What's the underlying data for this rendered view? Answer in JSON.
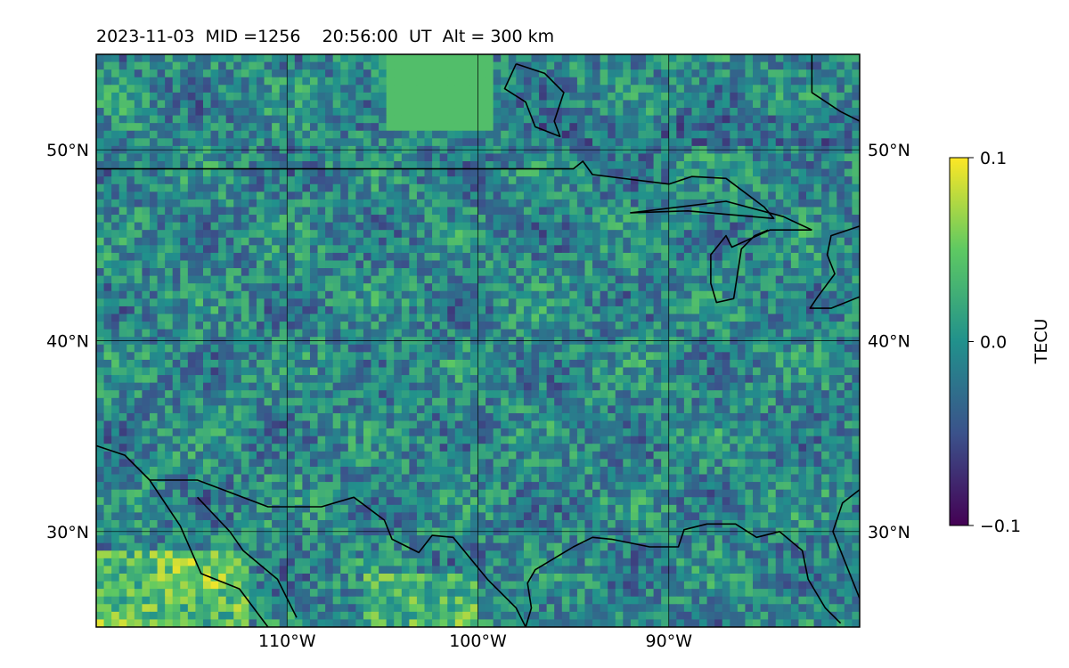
{
  "title": "2023-11-03  MID =1256    20:56:00  UT  Alt = 300 km",
  "map": {
    "lon_range": [
      -120,
      -80
    ],
    "lat_range": [
      25,
      55
    ],
    "lon_ticks": [
      {
        "value": -110,
        "label": "110°W"
      },
      {
        "value": -100,
        "label": "100°W"
      },
      {
        "value": -90,
        "label": "90°W"
      }
    ],
    "lat_ticks": [
      {
        "value": 50,
        "label": "50°N"
      },
      {
        "value": 40,
        "label": "40°N"
      },
      {
        "value": 30,
        "label": "30°N"
      }
    ],
    "grid": true,
    "field": "TEC perturbation"
  },
  "colorbar": {
    "label": "TECU",
    "vmin": -0.1,
    "vmax": 0.1,
    "ticks": [
      {
        "value": 0.1,
        "label": "0.1"
      },
      {
        "value": 0.0,
        "label": "0.0"
      },
      {
        "value": -0.1,
        "label": "−0.1"
      }
    ],
    "colormap": "viridis",
    "colors": [
      "#440154",
      "#3b528b",
      "#21918c",
      "#5ec962",
      "#fde725"
    ]
  },
  "coastlines": [
    [
      [
        -120,
        49
      ],
      [
        -95,
        49
      ],
      [
        -94.5,
        49.4
      ],
      [
        -94,
        48.7
      ],
      [
        -90,
        48.2
      ],
      [
        -88.8,
        48.6
      ],
      [
        -87,
        48.5
      ],
      [
        -85,
        47
      ],
      [
        -84.5,
        46.4
      ],
      [
        -89,
        46.8
      ],
      [
        -92,
        46.7
      ],
      [
        -87,
        47.3
      ],
      [
        -84,
        46.5
      ],
      [
        -82.5,
        45.8
      ]
    ],
    [
      [
        -82.5,
        45.8
      ],
      [
        -84.7,
        45.8
      ],
      [
        -86.7,
        44.9
      ],
      [
        -87,
        45.5
      ],
      [
        -87.8,
        44.5
      ],
      [
        -87.8,
        43
      ],
      [
        -87.5,
        42
      ],
      [
        -86.6,
        42.2
      ],
      [
        -86.4,
        43.5
      ],
      [
        -86.2,
        44.8
      ],
      [
        -85.5,
        45.5
      ],
      [
        -84.8,
        45.8
      ]
    ],
    [
      [
        -80,
        46
      ],
      [
        -81.5,
        45.5
      ],
      [
        -81.7,
        44.5
      ],
      [
        -81.3,
        43.5
      ],
      [
        -82.2,
        42.3
      ],
      [
        -82.6,
        41.7
      ],
      [
        -81.5,
        41.7
      ],
      [
        -80,
        42.3
      ]
    ],
    [
      [
        -120,
        34.5
      ],
      [
        -118.5,
        34
      ],
      [
        -117.2,
        32.7
      ],
      [
        -114.7,
        32.7
      ],
      [
        -111,
        31.3
      ],
      [
        -108.2,
        31.3
      ],
      [
        -106.5,
        31.8
      ],
      [
        -104.9,
        30.6
      ],
      [
        -104.5,
        29.6
      ],
      [
        -103.1,
        28.9
      ],
      [
        -102.4,
        29.8
      ],
      [
        -101.3,
        29.7
      ],
      [
        -99.5,
        27.5
      ],
      [
        -98,
        26
      ],
      [
        -97.5,
        25
      ]
    ],
    [
      [
        -97.5,
        25
      ],
      [
        -97.2,
        26
      ],
      [
        -97.4,
        27.3
      ],
      [
        -97,
        28
      ],
      [
        -95,
        29.2
      ],
      [
        -94,
        29.7
      ],
      [
        -93,
        29.6
      ],
      [
        -91,
        29.2
      ],
      [
        -89.5,
        29.2
      ],
      [
        -89.2,
        30.1
      ],
      [
        -88,
        30.4
      ],
      [
        -86.5,
        30.4
      ],
      [
        -85.4,
        29.7
      ],
      [
        -84.2,
        30
      ],
      [
        -83,
        29
      ],
      [
        -82.7,
        27.5
      ],
      [
        -81.8,
        26
      ],
      [
        -81,
        25.2
      ]
    ],
    [
      [
        -80,
        32.2
      ],
      [
        -80.9,
        31.5
      ],
      [
        -81.4,
        30
      ],
      [
        -81,
        29
      ],
      [
        -80.6,
        28
      ],
      [
        -80,
        26.5
      ]
    ],
    [
      [
        -117.2,
        32.7
      ],
      [
        -115.6,
        30.3
      ],
      [
        -114.5,
        27.8
      ],
      [
        -112.5,
        27
      ],
      [
        -111,
        25
      ]
    ],
    [
      [
        -114.7,
        31.8
      ],
      [
        -113,
        30
      ],
      [
        -112.3,
        29
      ],
      [
        -110.5,
        27.5
      ],
      [
        -109.5,
        25.5
      ]
    ],
    [
      [
        -98,
        54.5
      ],
      [
        -96.5,
        54
      ],
      [
        -95.5,
        53
      ],
      [
        -96,
        51.5
      ],
      [
        -95.7,
        50.7
      ],
      [
        -97,
        51.2
      ],
      [
        -97.5,
        52.5
      ],
      [
        -98.6,
        53.2
      ],
      [
        -98,
        54.5
      ]
    ],
    [
      [
        -82.5,
        55
      ],
      [
        -82.5,
        53
      ],
      [
        -81,
        52
      ],
      [
        -80,
        51.5
      ]
    ]
  ]
}
